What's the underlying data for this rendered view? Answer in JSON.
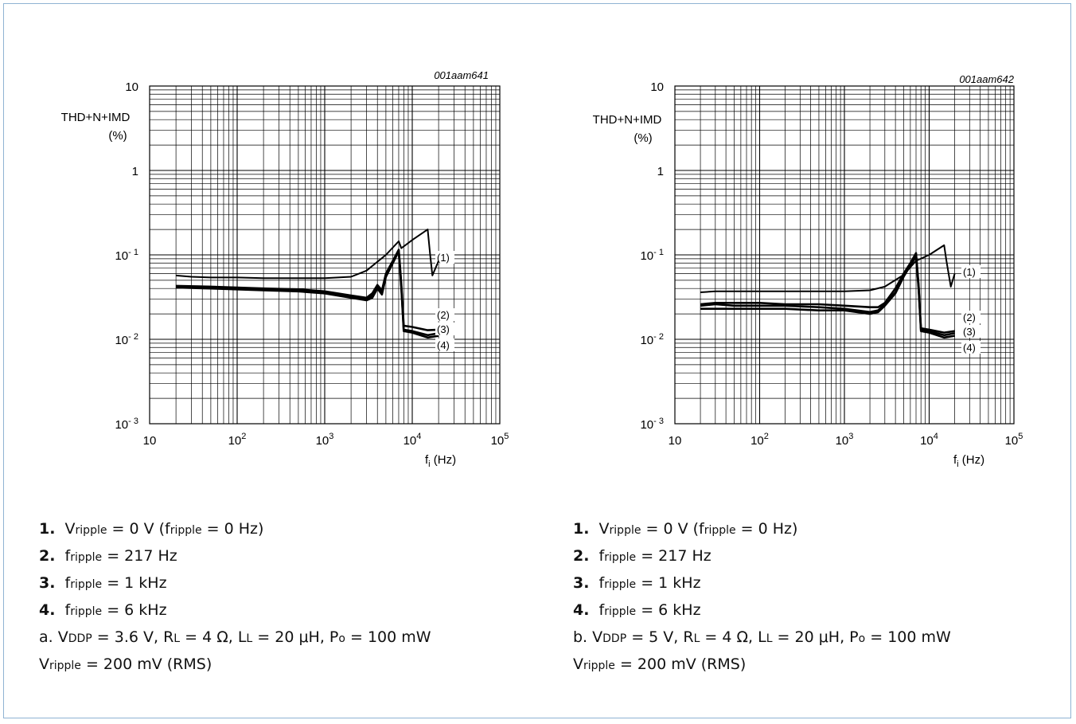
{
  "chart_data": [
    {
      "type": "line",
      "id": "001aam641",
      "ylabel": [
        "THD+N+IMD",
        "(%)"
      ],
      "xlabel_main": "f",
      "xlabel_sub": "i",
      "xlabel_unit": "(Hz)",
      "x_scale": "log",
      "y_scale": "log",
      "xlim": [
        10,
        100000
      ],
      "ylim": [
        0.001,
        10
      ],
      "grid": true,
      "xtick_labels": [
        {
          "base": "10",
          "exp": ""
        },
        {
          "base": "10",
          "exp": "2"
        },
        {
          "base": "10",
          "exp": "3"
        },
        {
          "base": "10",
          "exp": "4"
        },
        {
          "base": "10",
          "exp": "5"
        }
      ],
      "ytick_labels": [
        {
          "base": "10",
          "exp": ""
        },
        {
          "base": "1",
          "exp": ""
        },
        {
          "base": "10",
          "exp": "- 1"
        },
        {
          "base": "10",
          "exp": "- 2"
        },
        {
          "base": "10",
          "exp": "- 3"
        }
      ],
      "series": [
        {
          "name": "(1)",
          "x": [
            20,
            50,
            100,
            200,
            500,
            1000,
            2000,
            3000,
            3500,
            4000,
            4500,
            5000,
            6000,
            7000,
            7500,
            8000,
            10000,
            15000,
            20000
          ],
          "y": [
            0.041,
            0.04,
            0.039,
            0.038,
            0.037,
            0.035,
            0.031,
            0.029,
            0.031,
            0.04,
            0.034,
            0.055,
            0.08,
            0.11,
            0.04,
            0.0125,
            0.012,
            0.0105,
            0.011
          ]
        },
        {
          "name": "(2)",
          "x": [
            20,
            50,
            100,
            200,
            500,
            1000,
            2000,
            3000,
            3500,
            4000,
            4500,
            5000,
            6000,
            7000,
            7500,
            8000,
            10000,
            15000,
            20000
          ],
          "y": [
            0.042,
            0.041,
            0.04,
            0.039,
            0.038,
            0.036,
            0.032,
            0.03,
            0.033,
            0.042,
            0.036,
            0.057,
            0.082,
            0.112,
            0.042,
            0.013,
            0.0125,
            0.0112,
            0.0118
          ]
        },
        {
          "name": "(3)",
          "x": [
            20,
            50,
            100,
            200,
            500,
            1000,
            2000,
            3000,
            3500,
            4000,
            4500,
            5000,
            6000,
            7000,
            7500,
            8000,
            10000,
            15000,
            20000
          ],
          "y": [
            0.043,
            0.042,
            0.041,
            0.04,
            0.039,
            0.037,
            0.033,
            0.031,
            0.035,
            0.044,
            0.038,
            0.06,
            0.085,
            0.115,
            0.045,
            0.0145,
            0.014,
            0.0128,
            0.013
          ]
        },
        {
          "name": "(4)",
          "x": [
            20,
            30,
            50,
            100,
            200,
            500,
            1000,
            2000,
            3000,
            5000,
            7000,
            7500,
            10000,
            15000,
            16000,
            17000,
            20000
          ],
          "y": [
            0.057,
            0.055,
            0.054,
            0.054,
            0.053,
            0.053,
            0.053,
            0.055,
            0.065,
            0.1,
            0.145,
            0.12,
            0.15,
            0.2,
            0.1,
            0.057,
            0.085
          ]
        }
      ]
    },
    {
      "type": "line",
      "id": "001aam642",
      "ylabel": [
        "THD+N+IMD",
        "(%)"
      ],
      "xlabel_main": "f",
      "xlabel_sub": "i",
      "xlabel_unit": "(Hz)",
      "x_scale": "log",
      "y_scale": "log",
      "xlim": [
        10,
        100000
      ],
      "ylim": [
        0.001,
        10
      ],
      "grid": true,
      "xtick_labels": [
        {
          "base": "10",
          "exp": ""
        },
        {
          "base": "10",
          "exp": "2"
        },
        {
          "base": "10",
          "exp": "3"
        },
        {
          "base": "10",
          "exp": "4"
        },
        {
          "base": "10",
          "exp": "5"
        }
      ],
      "ytick_labels": [
        {
          "base": "10",
          "exp": ""
        },
        {
          "base": "1",
          "exp": ""
        },
        {
          "base": "10",
          "exp": "- 1"
        },
        {
          "base": "10",
          "exp": "- 2"
        },
        {
          "base": "10",
          "exp": "- 3"
        }
      ],
      "series": [
        {
          "name": "(1)",
          "x": [
            20,
            30,
            50,
            100,
            200,
            500,
            1000,
            2000,
            2500,
            3000,
            4000,
            5000,
            6000,
            7000,
            7500,
            8000,
            10000,
            15000,
            20000
          ],
          "y": [
            0.023,
            0.023,
            0.023,
            0.023,
            0.023,
            0.022,
            0.022,
            0.02,
            0.021,
            0.025,
            0.035,
            0.055,
            0.075,
            0.095,
            0.04,
            0.0125,
            0.012,
            0.0105,
            0.011
          ]
        },
        {
          "name": "(2)",
          "x": [
            20,
            30,
            50,
            100,
            200,
            500,
            1000,
            2000,
            2500,
            3000,
            4000,
            5000,
            6000,
            7000,
            7500,
            8000,
            10000,
            15000,
            20000
          ],
          "y": [
            0.025,
            0.026,
            0.025,
            0.025,
            0.025,
            0.024,
            0.023,
            0.021,
            0.022,
            0.026,
            0.036,
            0.056,
            0.078,
            0.1,
            0.042,
            0.013,
            0.0125,
            0.0112,
            0.0118
          ]
        },
        {
          "name": "(3)",
          "x": [
            20,
            30,
            50,
            100,
            200,
            500,
            1000,
            2000,
            2500,
            3000,
            4000,
            5000,
            6000,
            7000,
            7500,
            8000,
            10000,
            15000,
            20000
          ],
          "y": [
            0.026,
            0.027,
            0.027,
            0.027,
            0.026,
            0.026,
            0.025,
            0.024,
            0.024,
            0.027,
            0.04,
            0.06,
            0.08,
            0.105,
            0.044,
            0.0135,
            0.013,
            0.012,
            0.0125
          ]
        },
        {
          "name": "(4)",
          "x": [
            20,
            30,
            50,
            100,
            200,
            500,
            1000,
            2000,
            3000,
            5000,
            7000,
            10000,
            15000,
            16000,
            18000,
            20000
          ],
          "y": [
            0.036,
            0.037,
            0.037,
            0.037,
            0.037,
            0.037,
            0.037,
            0.038,
            0.042,
            0.058,
            0.085,
            0.1,
            0.13,
            0.085,
            0.042,
            0.06
          ]
        }
      ]
    }
  ],
  "notes": [
    {
      "lines": [
        [
          {
            "t": "1.",
            "s": "b"
          },
          {
            "t": "  V"
          },
          {
            "t": "ripple",
            "s": "sm"
          },
          {
            "t": " = 0 V (f"
          },
          {
            "t": "ripple",
            "s": "sm"
          },
          {
            "t": " = 0 Hz)"
          }
        ],
        [
          {
            "t": "2.",
            "s": "b"
          },
          {
            "t": "  f"
          },
          {
            "t": "ripple",
            "s": "sm"
          },
          {
            "t": " = 217 Hz"
          }
        ],
        [
          {
            "t": "3.",
            "s": "b"
          },
          {
            "t": "  f"
          },
          {
            "t": "ripple",
            "s": "sm"
          },
          {
            "t": " = 1 kHz"
          }
        ],
        [
          {
            "t": "4.",
            "s": "b"
          },
          {
            "t": "  f"
          },
          {
            "t": "ripple",
            "s": "sm"
          },
          {
            "t": " = 6 kHz"
          }
        ],
        [
          {
            "t": "a. V"
          },
          {
            "t": "DDP",
            "s": "sm"
          },
          {
            "t": " = 3.6 V, R"
          },
          {
            "t": "L",
            "s": "sm"
          },
          {
            "t": " = 4 Ω, L"
          },
          {
            "t": "L",
            "s": "sm"
          },
          {
            "t": " = 20 μH, P"
          },
          {
            "t": "o",
            "s": "sm"
          },
          {
            "t": " = 100 mW"
          }
        ],
        [
          {
            "t": "V"
          },
          {
            "t": "ripple",
            "s": "sm"
          },
          {
            "t": " = 200 mV (RMS)"
          }
        ]
      ]
    },
    {
      "lines": [
        [
          {
            "t": "1.",
            "s": "b"
          },
          {
            "t": "  V"
          },
          {
            "t": "ripple",
            "s": "sm"
          },
          {
            "t": " = 0 V (f"
          },
          {
            "t": "ripple",
            "s": "sm"
          },
          {
            "t": " = 0 Hz)"
          }
        ],
        [
          {
            "t": "2.",
            "s": "b"
          },
          {
            "t": "  f"
          },
          {
            "t": "ripple",
            "s": "sm"
          },
          {
            "t": " = 217 Hz"
          }
        ],
        [
          {
            "t": "3.",
            "s": "b"
          },
          {
            "t": "  f"
          },
          {
            "t": "ripple",
            "s": "sm"
          },
          {
            "t": " = 1 kHz"
          }
        ],
        [
          {
            "t": "4.",
            "s": "b"
          },
          {
            "t": "  f"
          },
          {
            "t": "ripple",
            "s": "sm"
          },
          {
            "t": " = 6 kHz"
          }
        ],
        [
          {
            "t": "b. V"
          },
          {
            "t": "DDP",
            "s": "sm"
          },
          {
            "t": " = 5 V, R"
          },
          {
            "t": "L",
            "s": "sm"
          },
          {
            "t": " = 4 Ω, L"
          },
          {
            "t": "L",
            "s": "sm"
          },
          {
            "t": " = 20 μH, P"
          },
          {
            "t": "o",
            "s": "sm"
          },
          {
            "t": " = 100 mW"
          }
        ],
        [
          {
            "t": "V"
          },
          {
            "t": "ripple",
            "s": "sm"
          },
          {
            "t": " = 200 mV (RMS)"
          }
        ]
      ]
    }
  ]
}
